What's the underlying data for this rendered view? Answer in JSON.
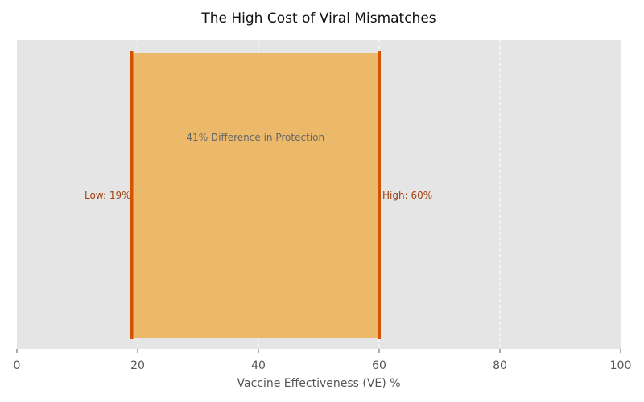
{
  "chart_data": {
    "type": "bar",
    "title": "The High Cost of Viral Mismatches",
    "xlabel": "Vaccine Effectiveness (VE) %",
    "ylabel": "",
    "xlim": [
      0,
      100
    ],
    "xticks": [
      0,
      20,
      40,
      60,
      80,
      100
    ],
    "grid": true,
    "range": {
      "low": 19,
      "high": 60
    },
    "annotations": {
      "low_label": "Low: 19%",
      "high_label": "High: 60%",
      "difference_label": "41% Difference in Protection"
    },
    "colors": {
      "plot_background": "#e5e5e5",
      "range_fill": "#ecb96a",
      "bound_line": "#d35400",
      "bound_text": "#a0410d"
    }
  }
}
